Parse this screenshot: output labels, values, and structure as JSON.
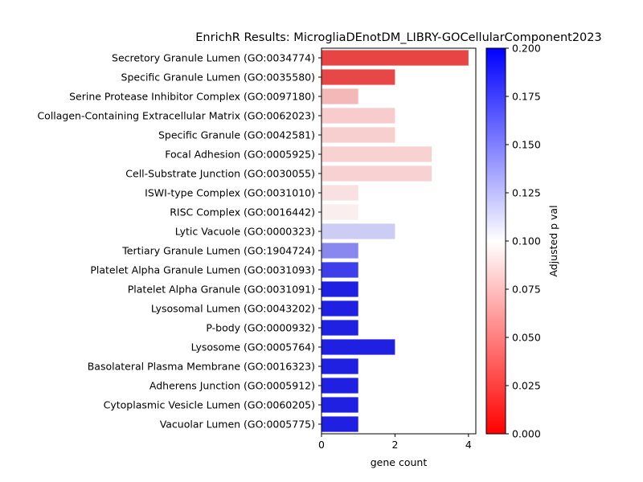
{
  "chart_data": {
    "type": "bar",
    "orientation": "horizontal",
    "title": "EnrichR Results: MicrogliaDEnotDM_LIBRY-GOCellularComponent2023",
    "xlabel": "gene count",
    "ylabel": "",
    "xlim": [
      0,
      4.2
    ],
    "xticks": [
      0,
      2,
      4
    ],
    "categories": [
      "Secretory Granule Lumen (GO:0034774)",
      "Specific Granule Lumen (GO:0035580)",
      "Serine Protease Inhibitor Complex (GO:0097180)",
      "Collagen-Containing Extracellular Matrix (GO:0062023)",
      "Specific Granule (GO:0042581)",
      "Focal Adhesion (GO:0005925)",
      "Cell-Substrate Junction (GO:0030055)",
      "ISWI-type Complex (GO:0031010)",
      "RISC Complex (GO:0016442)",
      "Lytic Vacuole (GO:0000323)",
      "Tertiary Granule Lumen (GO:1904724)",
      "Platelet Alpha Granule Lumen (GO:0031093)",
      "Platelet Alpha Granule (GO:0031091)",
      "Lysosomal Lumen (GO:0043202)",
      "P-body (GO:0000932)",
      "Lysosome (GO:0005764)",
      "Basolateral Plasma Membrane (GO:0016323)",
      "Adherens Junction (GO:0005912)",
      "Cytoplasmic Vesicle Lumen (GO:0060205)",
      "Vacuolar Lumen (GO:0005775)"
    ],
    "values": [
      4,
      2,
      1,
      2,
      2,
      3,
      3,
      1,
      1,
      2,
      1,
      1,
      1,
      1,
      1,
      2,
      1,
      1,
      1,
      1
    ],
    "colors": [
      "#e84444",
      "#e84747",
      "#f4b8b8",
      "#f8cccc",
      "#f8cfcf",
      "#f8d1d1",
      "#f8d2d2",
      "#fae1e1",
      "#fbeeee",
      "#ccccf4",
      "#8888ee",
      "#3e3eea",
      "#2020e2",
      "#2020e2",
      "#2020e2",
      "#2020e2",
      "#2020e2",
      "#2020e2",
      "#2020e2",
      "#2020e2"
    ],
    "colorbar": {
      "label": "Adjusted p val",
      "min": 0.0,
      "max": 0.2,
      "ticks": [
        "0.000",
        "0.025",
        "0.050",
        "0.075",
        "0.100",
        "0.125",
        "0.150",
        "0.175",
        "0.200"
      ],
      "colormap": [
        "#ff0000",
        "#ffffff",
        "#0000ff"
      ]
    }
  }
}
